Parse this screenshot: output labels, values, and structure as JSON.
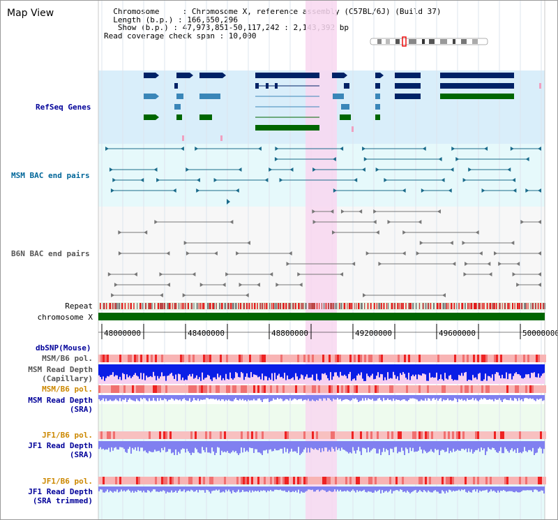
{
  "view": {
    "title": "Map View",
    "info_lines": [
      "  Chromosome     : Chromosome X, reference assembly (C57BL/6J) (Build 37)",
      "  Length (b.p.) : 166,650,296",
      "   Show (b.p.) : 47,973,851-50,117,242 : 2,143,392 bp",
      "Read coverage check span : 10,000"
    ]
  },
  "tracks": {
    "refseq": "RefSeq Genes",
    "msm_bac": "MSM BAC end pairs",
    "b6n_bac": "B6N BAC end pairs",
    "repeat": "Repeat",
    "chromosome": "chromosome X",
    "dbsnp": "dbSNP(Mouse)",
    "msm_b6_pol_1": "MSM/B6 pol.",
    "msm_depth_cap_1": "MSM Read Depth",
    "msm_depth_cap_2": "(Capillary)",
    "msm_b6_pol_2": "MSM/B6 pol.",
    "msm_depth_sra_1": "MSM Read Depth",
    "msm_depth_sra_2": "(SRA)",
    "jf1_b6_pol_1": "JF1/B6 pol.",
    "jf1_depth_sra_1": "JF1 Read Depth",
    "jf1_depth_sra_2": "(SRA)",
    "jf1_b6_pol_2": "JF1/B6 pol.",
    "jf1_depth_trim_1": "JF1 Read Depth",
    "jf1_depth_trim_2": "(SRA trimmed)"
  },
  "axis": {
    "ticks": [
      "48000000",
      "48400000",
      "48800000",
      "49200000",
      "49600000",
      "50000000"
    ]
  },
  "colors": {
    "label_blue": "#000099",
    "label_teal": "#006699",
    "label_orange": "#cc8800",
    "refseq_bg": "#d9eefa",
    "msm_bg": "#e6f9fb",
    "b6n_bg": "#f7f7f7",
    "highlight": "#f8d7f0",
    "chromosome_bar": "#006600",
    "depth_capillary": "#0a1ee6",
    "depth_sra": "#8080f0"
  }
}
